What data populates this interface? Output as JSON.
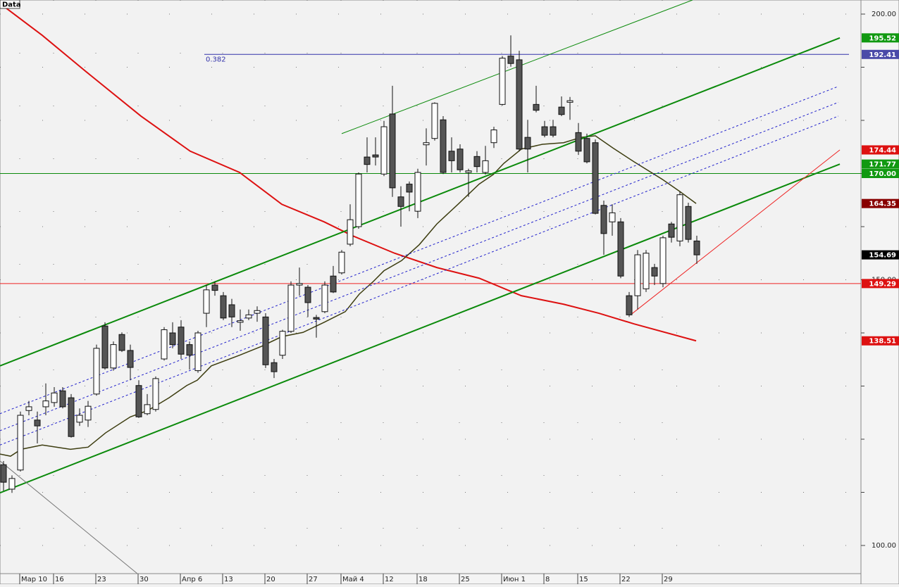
{
  "chart_data": {
    "type": "candlestick",
    "label": "Data",
    "ylim": [
      94.7,
      202.65
    ],
    "yticks": [
      {
        "value": 100,
        "label": "100.00"
      },
      {
        "value": 150,
        "label": "150.00"
      },
      {
        "value": 200,
        "label": "200.00"
      }
    ],
    "minor_yticks": [
      110,
      120,
      130,
      140,
      160,
      170,
      180,
      190
    ],
    "grid": true,
    "up_color": "#ffffff",
    "down_color": "#555555",
    "categories": [
      null,
      null,
      "Мар 10",
      null,
      null,
      null,
      "16",
      null,
      null,
      null,
      null,
      "23",
      null,
      null,
      null,
      null,
      "30",
      null,
      null,
      null,
      null,
      "Апр 6",
      null,
      null,
      null,
      null,
      "13",
      null,
      null,
      null,
      null,
      "20",
      null,
      null,
      null,
      null,
      "27",
      null,
      null,
      null,
      "Май 4",
      null,
      null,
      null,
      null,
      "12",
      null,
      null,
      null,
      "18",
      null,
      null,
      null,
      null,
      "25",
      null,
      null,
      null,
      null,
      "Июн 1",
      null,
      null,
      null,
      null,
      "8",
      null,
      null,
      null,
      "15",
      null,
      null,
      null,
      null,
      "22",
      null,
      null,
      null,
      null,
      "29",
      null,
      null,
      null,
      null
    ],
    "open": [
      115.2,
      110.6,
      114.2,
      125.4,
      123.6,
      126.1,
      126.9,
      129.1,
      127.8,
      123.2,
      123.6,
      128.5,
      141.3,
      133.4,
      139.7,
      136.7,
      130.1,
      124.8,
      125.6,
      135.1,
      140.0,
      141.1,
      137.8,
      132.9,
      143.7,
      149.0,
      147.0,
      145.3,
      142.0,
      142.8,
      143.7,
      143.0,
      134.4,
      135.8,
      140.3,
      149.0,
      148.6,
      142.9,
      144.0,
      150.7,
      151.3,
      156.7,
      160.0,
      173.1,
      173.5,
      169.9,
      181.2,
      165.6,
      168.0,
      162.9,
      175.4,
      176.6,
      180.1,
      174.2,
      174.6,
      170.2,
      173.2,
      170.2,
      175.8,
      183.0,
      192.1,
      191.4,
      176.8,
      183.0,
      178.8,
      178.8,
      182.5,
      183.4,
      177.7,
      176.6,
      175.8,
      164.0,
      160.9,
      160.9,
      147.0,
      147.0,
      148.3,
      152.3,
      149.3,
      160.5,
      157.3,
      163.8,
      157.3
    ],
    "high": [
      115.9,
      113.2,
      125.2,
      127.2,
      125.2,
      130.5,
      129.8,
      129.8,
      128.5,
      125.8,
      127.2,
      137.8,
      142.0,
      138.4,
      140.1,
      137.8,
      131.1,
      128.5,
      131.8,
      141.1,
      142.0,
      142.4,
      138.4,
      140.4,
      149.0,
      149.7,
      147.7,
      146.4,
      144.4,
      144.4,
      145.0,
      143.7,
      135.1,
      140.6,
      149.7,
      152.3,
      149.0,
      143.4,
      149.7,
      152.6,
      155.6,
      164.2,
      170.2,
      176.8,
      176.8,
      179.9,
      186.5,
      167.6,
      168.5,
      170.9,
      178.5,
      183.4,
      180.8,
      176.8,
      175.5,
      170.9,
      174.2,
      175.2,
      178.8,
      192.1,
      196.0,
      193.1,
      180.1,
      186.5,
      179.9,
      180.1,
      184.5,
      184.4,
      179.5,
      177.5,
      176.4,
      164.9,
      164.2,
      161.6,
      147.7,
      155.6,
      155.6,
      153.0,
      158.3,
      160.9,
      166.6,
      164.5,
      158.3
    ],
    "low": [
      110.3,
      109.9,
      113.9,
      124.5,
      119.2,
      124.5,
      126.1,
      125.8,
      120.3,
      122.5,
      122.3,
      128.2,
      133.1,
      132.9,
      136.4,
      131.1,
      124.0,
      124.5,
      125.2,
      134.8,
      137.1,
      135.1,
      133.1,
      132.5,
      141.1,
      147.0,
      142.4,
      141.1,
      140.4,
      142.4,
      142.1,
      133.4,
      131.5,
      135.1,
      140.0,
      147.0,
      143.0,
      139.1,
      143.7,
      147.5,
      151.0,
      156.3,
      159.6,
      170.2,
      171.5,
      169.5,
      165.6,
      160.0,
      162.9,
      161.6,
      171.5,
      176.2,
      169.9,
      170.2,
      170.2,
      165.6,
      170.2,
      169.8,
      174.8,
      182.8,
      190.1,
      174.2,
      170.2,
      181.5,
      176.8,
      176.8,
      180.8,
      180.1,
      173.5,
      171.9,
      162.3,
      154.7,
      158.3,
      150.3,
      143.0,
      144.4,
      147.7,
      149.0,
      148.6,
      157.0,
      156.3,
      157.0,
      153.0
    ],
    "close": [
      111.9,
      112.6,
      124.5,
      126.1,
      122.5,
      127.2,
      128.7,
      126.1,
      120.5,
      124.5,
      126.2,
      137.1,
      133.4,
      137.8,
      136.7,
      133.5,
      124.2,
      126.5,
      131.4,
      140.6,
      137.8,
      136.0,
      135.8,
      140.0,
      148.1,
      148.0,
      142.8,
      143.0,
      142.3,
      143.4,
      144.2,
      134.0,
      132.7,
      140.3,
      149.0,
      149.3,
      145.7,
      142.6,
      149.0,
      147.7,
      155.2,
      161.3,
      169.9,
      171.7,
      173.1,
      178.8,
      167.3,
      163.8,
      166.5,
      170.2,
      175.8,
      183.2,
      170.2,
      172.4,
      170.7,
      170.5,
      171.3,
      172.4,
      178.2,
      191.7,
      190.7,
      174.6,
      174.6,
      181.9,
      177.2,
      177.2,
      181.1,
      183.7,
      174.2,
      172.2,
      162.5,
      158.7,
      162.6,
      150.7,
      143.4,
      154.7,
      155.0,
      150.7,
      157.9,
      158.0,
      166.0,
      157.6,
      154.69
    ],
    "overlays": [
      {
        "color": "#dd1111",
        "width": 2,
        "dashed": false,
        "x": [
          -0.42,
          4.58,
          9.58,
          16.25,
          22.08,
          27.92,
          32.92,
          37.92,
          41.25,
          46.25,
          51.25,
          56.25,
          61.25,
          66.25,
          70.42,
          74.58,
          81.92
        ],
        "y": [
          202.0,
          196.0,
          189.4,
          180.8,
          174.2,
          170.2,
          164.2,
          160.9,
          158.3,
          155.0,
          152.3,
          150.3,
          147.0,
          145.4,
          143.7,
          141.7,
          138.51
        ]
      },
      {
        "color": "#3d3d10",
        "width": 1.5,
        "dashed": false,
        "x": [
          -0.42,
          0.83,
          2.08,
          4.58,
          7.92,
          10,
          12.08,
          15,
          17.08,
          19.58,
          21.67,
          22.92,
          24.58,
          27.92,
          30.42,
          32.92,
          35.42,
          37.92,
          40.42,
          42.08,
          43.75,
          45,
          47.08,
          49.17,
          51.25,
          53.75,
          56.25,
          57.92,
          59.17,
          61.25,
          63.75,
          66.25,
          68.33,
          70,
          72.08,
          74.58,
          77.92,
          80,
          81.92
        ],
        "y": [
          117.2,
          116.8,
          118.1,
          118.9,
          118.1,
          118.5,
          121.2,
          124.2,
          125.4,
          127.8,
          130.1,
          131.1,
          133.8,
          135.8,
          137.4,
          139.3,
          140.1,
          142.0,
          144.0,
          147.3,
          149.7,
          151.7,
          153.6,
          156.6,
          160.5,
          164.2,
          168.0,
          169.8,
          171.9,
          174.6,
          175.5,
          175.8,
          176.8,
          177.1,
          174.8,
          172.2,
          168.9,
          166.6,
          164.35
        ]
      },
      {
        "color": "#0b8a0b",
        "width": 2,
        "dashed": false,
        "x": [
          -0.42,
          98.92
        ],
        "y": [
          133.8,
          195.52
        ]
      },
      {
        "color": "#0b8a0b",
        "width": 2,
        "dashed": false,
        "x": [
          -0.42,
          98.92
        ],
        "y": [
          109.9,
          171.77
        ]
      },
      {
        "color": "#0b8a0b",
        "width": 1,
        "dashed": false,
        "x": [
          40,
          81.5
        ],
        "y": [
          177.5,
          202.65
        ]
      },
      {
        "color": "#2222cc",
        "width": 1,
        "dashed": true,
        "x": [
          -0.42,
          98.75
        ],
        "y": [
          124.8,
          186.4
        ]
      },
      {
        "color": "#2222cc",
        "width": 1,
        "dashed": true,
        "x": [
          -0.42,
          98.75
        ],
        "y": [
          121.6,
          183.4
        ]
      },
      {
        "color": "#2222cc",
        "width": 1,
        "dashed": true,
        "x": [
          -0.42,
          98.75
        ],
        "y": [
          118.9,
          180.8
        ]
      },
      {
        "color": "#ee2222",
        "width": 1,
        "dashed": false,
        "x": [
          74.17,
          98.92
        ],
        "y": [
          143.4,
          174.44
        ]
      },
      {
        "color": "#777777",
        "width": 1,
        "dashed": false,
        "x": [
          -0.42,
          15.83
        ],
        "y": [
          115.9,
          94.7
        ]
      }
    ],
    "levels": [
      {
        "value": 192.41,
        "color": "#3333aa",
        "label": "0.382",
        "from": 23.75,
        "to": 100
      },
      {
        "value": 170.0,
        "color": "#0b8a0b"
      },
      {
        "value": 149.29,
        "color": "#ee2222"
      }
    ],
    "price_markers": [
      {
        "value": 195.52,
        "label": "195.52",
        "color": "#119911"
      },
      {
        "value": 192.41,
        "label": "192.41",
        "color": "#4a4aa8"
      },
      {
        "value": 174.44,
        "label": "174.44",
        "color": "#dd1111"
      },
      {
        "value": 171.77,
        "label": "171.77",
        "color": "#119911"
      },
      {
        "value": 170.0,
        "label": "170.00",
        "color": "#119911"
      },
      {
        "value": 164.35,
        "label": "164.35",
        "color": "#880000"
      },
      {
        "value": 154.69,
        "label": "154.69",
        "color": "#000000"
      },
      {
        "value": 149.29,
        "label": "149.29",
        "color": "#dd1111"
      },
      {
        "value": 138.51,
        "label": "138.51",
        "color": "#dd1111"
      }
    ]
  }
}
